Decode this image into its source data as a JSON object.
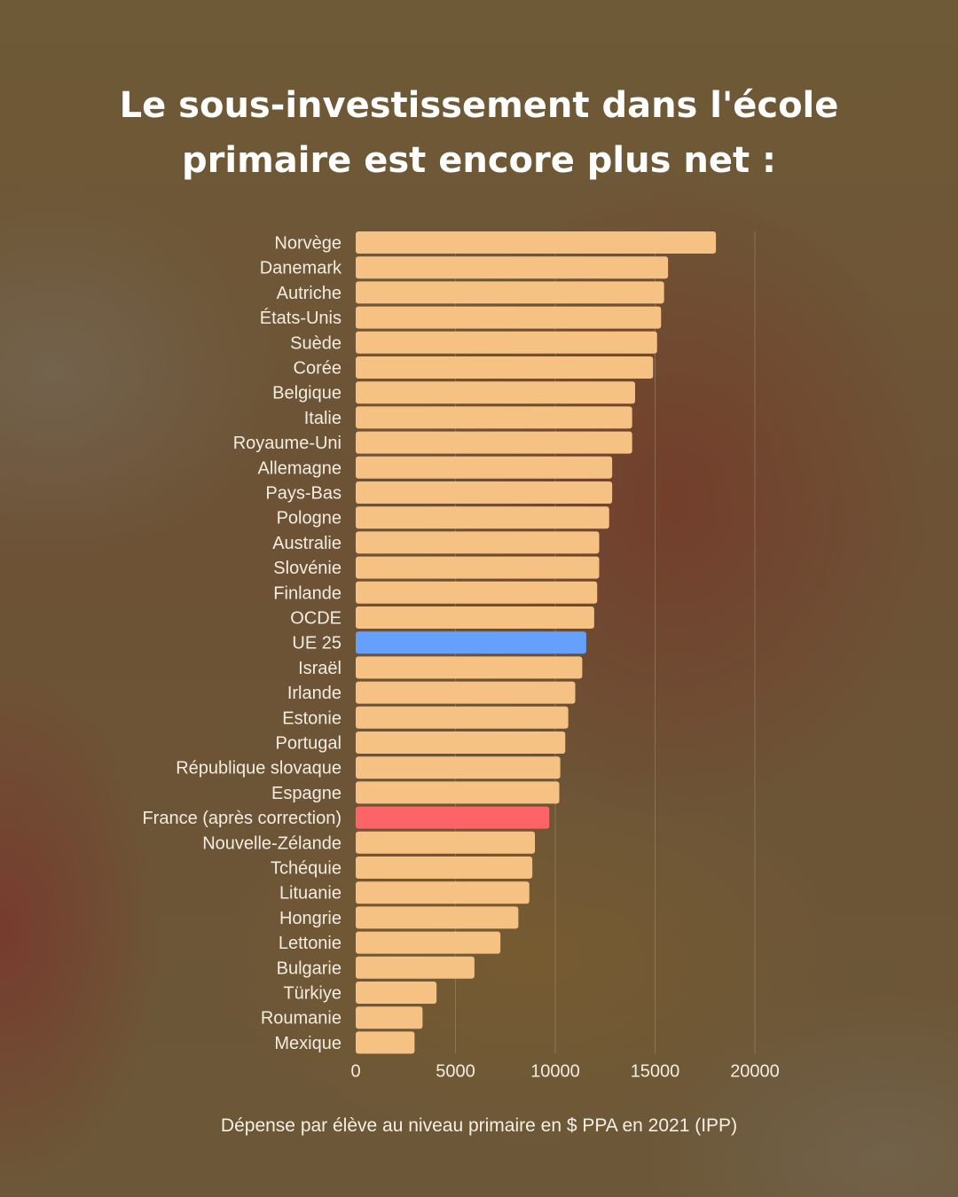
{
  "title_lines": [
    "Le sous-investissement dans l'école",
    "primaire est encore plus net :"
  ],
  "colors": {
    "default": "#f5c283",
    "highlight_eu": "#64a0fc",
    "highlight_france": "#fc6468",
    "text": "#f3ece0",
    "grid": "#a08e72"
  },
  "chart_data": {
    "type": "bar",
    "orientation": "horizontal",
    "title": "Le sous-investissement dans l'école primaire est encore plus net :",
    "xlabel": "Dépense par élève au niveau primaire en $ PPA en 2021 (IPP)",
    "ylabel": "",
    "xlim": [
      0,
      20000
    ],
    "xticks": [
      "0",
      "5000",
      "10000",
      "15000",
      "20000"
    ],
    "grid": "vertical",
    "categories": [
      "Norvège",
      "Danemark",
      "Autriche",
      "États-Unis",
      "Suède",
      "Corée",
      "Belgique",
      "Italie",
      "Royaume-Uni",
      "Allemagne",
      "Pays-Bas",
      "Pologne",
      "Australie",
      "Slovénie",
      "Finlande",
      "OCDE",
      "UE 25",
      "Israël",
      "Irlande",
      "Estonie",
      "Portugal",
      "République slovaque",
      "Espagne",
      "France (après correction)",
      "Nouvelle-Zélande",
      "Tchéquie",
      "Lituanie",
      "Hongrie",
      "Lettonie",
      "Bulgarie",
      "Türkiye",
      "Roumanie",
      "Mexique"
    ],
    "values": [
      18050,
      15650,
      15450,
      15300,
      15100,
      14900,
      14000,
      13850,
      13850,
      12850,
      12850,
      12700,
      12200,
      12200,
      12100,
      11950,
      11550,
      11350,
      11000,
      10650,
      10500,
      10250,
      10200,
      9700,
      8980,
      8850,
      8700,
      8150,
      7250,
      5950,
      4050,
      3350,
      2950
    ],
    "highlight": {
      "UE 25": "highlight_eu",
      "France (après correction)": "highlight_france"
    }
  }
}
